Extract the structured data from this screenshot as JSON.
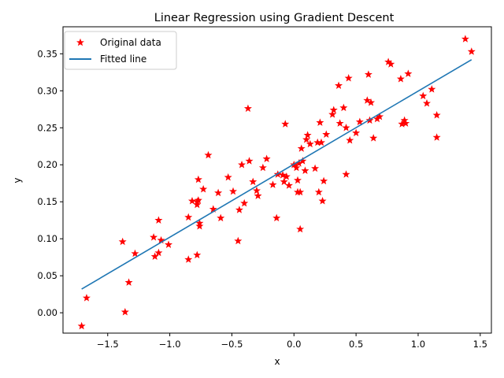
{
  "chart_data": {
    "type": "scatter",
    "title": "Linear Regression using Gradient Descent",
    "xlabel": "x",
    "ylabel": "y",
    "xlim": [
      -1.86,
      1.59
    ],
    "ylim": [
      -0.0275,
      0.3865
    ],
    "xticks": [
      -1.5,
      -1.0,
      -0.5,
      0.0,
      0.5,
      1.0,
      1.5
    ],
    "xtick_labels": [
      "−1.5",
      "−1.0",
      "−0.5",
      "0.0",
      "0.5",
      "1.0",
      "1.5"
    ],
    "yticks": [
      0.0,
      0.05,
      0.1,
      0.15,
      0.2,
      0.25,
      0.3,
      0.35
    ],
    "ytick_labels": [
      "0.00",
      "0.05",
      "0.10",
      "0.15",
      "0.20",
      "0.25",
      "0.30",
      "0.35"
    ],
    "grid": false,
    "legend_position": "upper-left",
    "series": [
      {
        "name": "Original data",
        "kind": "points",
        "marker": "star",
        "color": "#ff0000",
        "points": [
          [
            -1.71,
            -0.018
          ],
          [
            -1.67,
            0.02
          ],
          [
            -1.38,
            0.096
          ],
          [
            -1.36,
            0.001
          ],
          [
            -1.33,
            0.041
          ],
          [
            -1.28,
            0.08
          ],
          [
            -1.13,
            0.102
          ],
          [
            -1.12,
            0.076
          ],
          [
            -1.09,
            0.081
          ],
          [
            -1.09,
            0.125
          ],
          [
            -1.07,
            0.098
          ],
          [
            -1.01,
            0.092
          ],
          [
            -0.85,
            0.129
          ],
          [
            -0.85,
            0.072
          ],
          [
            -0.82,
            0.151
          ],
          [
            -0.78,
            0.15
          ],
          [
            -0.78,
            0.146
          ],
          [
            -0.78,
            0.078
          ],
          [
            -0.77,
            0.152
          ],
          [
            -0.77,
            0.18
          ],
          [
            -0.76,
            0.121
          ],
          [
            -0.76,
            0.117
          ],
          [
            -0.73,
            0.167
          ],
          [
            -0.69,
            0.213
          ],
          [
            -0.65,
            0.14
          ],
          [
            -0.61,
            0.162
          ],
          [
            -0.59,
            0.128
          ],
          [
            -0.53,
            0.183
          ],
          [
            -0.49,
            0.164
          ],
          [
            -0.45,
            0.097
          ],
          [
            -0.44,
            0.139
          ],
          [
            -0.42,
            0.2
          ],
          [
            -0.4,
            0.148
          ],
          [
            -0.37,
            0.276
          ],
          [
            -0.36,
            0.205
          ],
          [
            -0.33,
            0.177
          ],
          [
            -0.3,
            0.165
          ],
          [
            -0.29,
            0.158
          ],
          [
            -0.25,
            0.196
          ],
          [
            -0.22,
            0.208
          ],
          [
            -0.17,
            0.173
          ],
          [
            -0.14,
            0.128
          ],
          [
            -0.13,
            0.187
          ],
          [
            -0.09,
            0.186
          ],
          [
            -0.08,
            0.177
          ],
          [
            -0.07,
            0.255
          ],
          [
            -0.06,
            0.184
          ],
          [
            -0.04,
            0.172
          ],
          [
            0.0,
            0.2
          ],
          [
            0.02,
            0.196
          ],
          [
            0.03,
            0.179
          ],
          [
            0.03,
            0.163
          ],
          [
            0.04,
            0.202
          ],
          [
            0.05,
            0.113
          ],
          [
            0.05,
            0.163
          ],
          [
            0.06,
            0.222
          ],
          [
            0.07,
            0.205
          ],
          [
            0.09,
            0.192
          ],
          [
            0.1,
            0.234
          ],
          [
            0.11,
            0.24
          ],
          [
            0.13,
            0.228
          ],
          [
            0.17,
            0.195
          ],
          [
            0.19,
            0.23
          ],
          [
            0.2,
            0.163
          ],
          [
            0.21,
            0.257
          ],
          [
            0.22,
            0.23
          ],
          [
            0.23,
            0.151
          ],
          [
            0.24,
            0.178
          ],
          [
            0.26,
            0.241
          ],
          [
            0.31,
            0.268
          ],
          [
            0.32,
            0.274
          ],
          [
            0.36,
            0.307
          ],
          [
            0.37,
            0.256
          ],
          [
            0.4,
            0.277
          ],
          [
            0.42,
            0.25
          ],
          [
            0.42,
            0.187
          ],
          [
            0.44,
            0.317
          ],
          [
            0.45,
            0.233
          ],
          [
            0.5,
            0.243
          ],
          [
            0.53,
            0.258
          ],
          [
            0.59,
            0.287
          ],
          [
            0.6,
            0.322
          ],
          [
            0.61,
            0.26
          ],
          [
            0.62,
            0.284
          ],
          [
            0.64,
            0.236
          ],
          [
            0.67,
            0.262
          ],
          [
            0.69,
            0.265
          ],
          [
            0.76,
            0.339
          ],
          [
            0.78,
            0.336
          ],
          [
            0.86,
            0.316
          ],
          [
            0.87,
            0.255
          ],
          [
            0.89,
            0.26
          ],
          [
            0.9,
            0.256
          ],
          [
            0.92,
            0.323
          ],
          [
            1.04,
            0.293
          ],
          [
            1.07,
            0.283
          ],
          [
            1.11,
            0.302
          ],
          [
            1.15,
            0.267
          ],
          [
            1.15,
            0.237
          ],
          [
            1.38,
            0.37
          ],
          [
            1.43,
            0.353
          ]
        ]
      },
      {
        "name": "Fitted line",
        "kind": "line",
        "color": "#1f77b4",
        "x": [
          -1.71,
          1.43
        ],
        "y": [
          0.032,
          0.342
        ]
      }
    ]
  }
}
